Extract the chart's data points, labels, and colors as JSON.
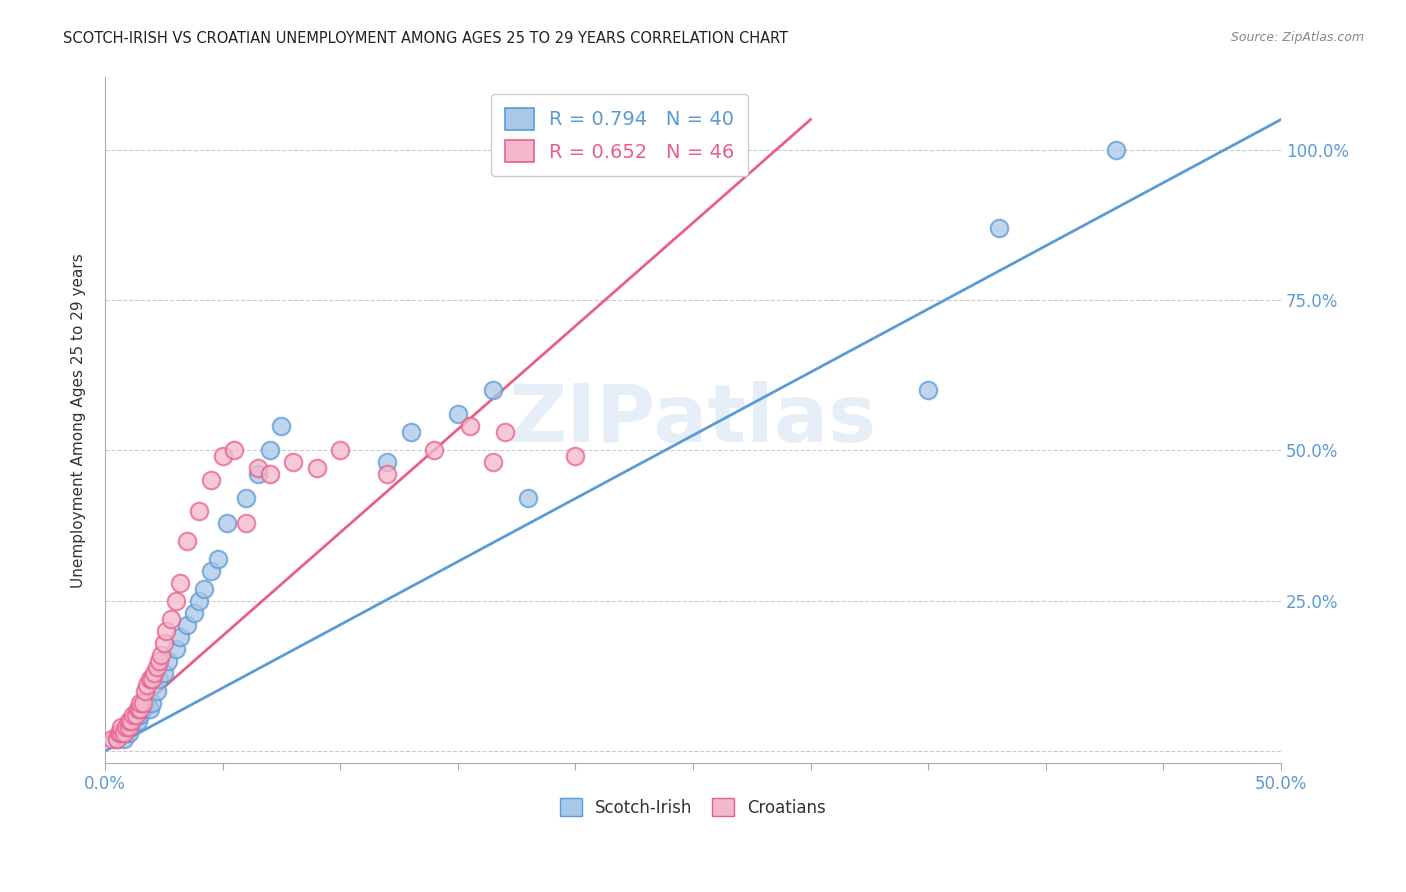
{
  "title": "SCOTCH-IRISH VS CROATIAN UNEMPLOYMENT AMONG AGES 25 TO 29 YEARS CORRELATION CHART",
  "source": "Source: ZipAtlas.com",
  "ylabel": "Unemployment Among Ages 25 to 29 years",
  "xlim": [
    0.0,
    0.5
  ],
  "ylim": [
    -0.02,
    1.12
  ],
  "xticks": [
    0.0,
    0.05,
    0.1,
    0.15,
    0.2,
    0.25,
    0.3,
    0.35,
    0.4,
    0.45,
    0.5
  ],
  "xtick_labels_show": {
    "0.0": "0.0%",
    "0.5": "50.0%"
  },
  "yticks": [
    0.0,
    0.25,
    0.5,
    0.75,
    1.0
  ],
  "ytick_labels": [
    "",
    "25.0%",
    "50.0%",
    "75.0%",
    "100.0%"
  ],
  "scotch_irish_color": "#a8c8e8",
  "scotch_irish_edge_color": "#5b9bd5",
  "croatian_color": "#f4b8cc",
  "croatian_edge_color": "#e8608a",
  "scotch_irish_line_color": "#5b9bd5",
  "croatian_line_color": "#e8608a",
  "legend_R_scotch": "R = 0.794",
  "legend_N_scotch": "N = 40",
  "legend_R_croatian": "R = 0.652",
  "legend_N_croatian": "N = 46",
  "watermark": "ZIPatlas",
  "axis_label_color": "#5b9bd5",
  "scotch_irish_x": [
    0.005,
    0.007,
    0.008,
    0.009,
    0.01,
    0.01,
    0.011,
    0.012,
    0.013,
    0.014,
    0.015,
    0.016,
    0.018,
    0.019,
    0.02,
    0.022,
    0.023,
    0.025,
    0.027,
    0.03,
    0.032,
    0.035,
    0.038,
    0.04,
    0.042,
    0.045,
    0.048,
    0.052,
    0.06,
    0.065,
    0.07,
    0.075,
    0.12,
    0.13,
    0.15,
    0.165,
    0.18,
    0.35,
    0.38,
    0.43
  ],
  "scotch_irish_y": [
    0.02,
    0.03,
    0.02,
    0.03,
    0.03,
    0.04,
    0.04,
    0.05,
    0.06,
    0.05,
    0.06,
    0.07,
    0.08,
    0.07,
    0.08,
    0.1,
    0.12,
    0.13,
    0.15,
    0.17,
    0.19,
    0.21,
    0.23,
    0.25,
    0.27,
    0.3,
    0.32,
    0.38,
    0.42,
    0.46,
    0.5,
    0.54,
    0.48,
    0.53,
    0.56,
    0.6,
    0.42,
    0.6,
    0.87,
    1.0
  ],
  "croatian_x": [
    0.003,
    0.005,
    0.006,
    0.007,
    0.007,
    0.008,
    0.009,
    0.01,
    0.01,
    0.011,
    0.012,
    0.013,
    0.014,
    0.015,
    0.015,
    0.016,
    0.017,
    0.018,
    0.019,
    0.02,
    0.021,
    0.022,
    0.023,
    0.024,
    0.025,
    0.026,
    0.028,
    0.03,
    0.032,
    0.035,
    0.04,
    0.045,
    0.05,
    0.055,
    0.06,
    0.065,
    0.07,
    0.08,
    0.09,
    0.1,
    0.12,
    0.14,
    0.155,
    0.165,
    0.17,
    0.2
  ],
  "croatian_y": [
    0.02,
    0.02,
    0.03,
    0.03,
    0.04,
    0.03,
    0.04,
    0.04,
    0.05,
    0.05,
    0.06,
    0.06,
    0.07,
    0.07,
    0.08,
    0.08,
    0.1,
    0.11,
    0.12,
    0.12,
    0.13,
    0.14,
    0.15,
    0.16,
    0.18,
    0.2,
    0.22,
    0.25,
    0.28,
    0.35,
    0.4,
    0.45,
    0.49,
    0.5,
    0.38,
    0.47,
    0.46,
    0.48,
    0.47,
    0.5,
    0.46,
    0.5,
    0.54,
    0.48,
    0.53,
    0.49
  ],
  "si_line_x0": 0.0,
  "si_line_y0": 0.0,
  "si_line_x1": 0.5,
  "si_line_y1": 1.05,
  "cr_line_x0": 0.0,
  "cr_line_y0": 0.02,
  "cr_line_x1": 0.3,
  "cr_line_y1": 1.05
}
